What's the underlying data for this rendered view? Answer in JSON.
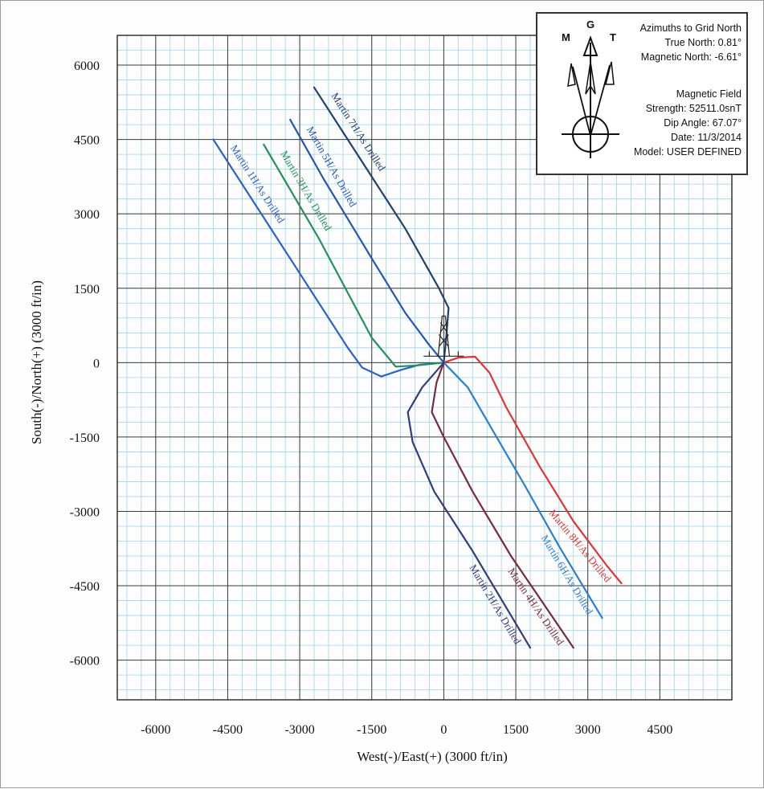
{
  "chart_data": {
    "type": "line",
    "xlabel": "West(-)/East(+) (3000 ft/in)",
    "ylabel": "South(-)/North(+) (3000 ft/in)",
    "xlim": [
      -6800,
      6000
    ],
    "ylim": [
      -6800,
      6600
    ],
    "x_ticks": [
      -6000,
      -4500,
      -3000,
      -1500,
      0,
      1500,
      3000,
      4500
    ],
    "y_ticks": [
      6000,
      4500,
      3000,
      1500,
      0,
      -1500,
      -3000,
      -4500,
      -6000
    ],
    "grid": true,
    "series": [
      {
        "name": "Martin 1H/As Drilled",
        "color": "#2a62c9",
        "points": [
          [
            -4800,
            4500
          ],
          [
            -3000,
            1800
          ],
          [
            -2000,
            300
          ],
          [
            -1700,
            -100
          ],
          [
            -1300,
            -280
          ],
          [
            -900,
            -150
          ],
          [
            -500,
            -40
          ],
          [
            0,
            0
          ]
        ]
      },
      {
        "name": "Martin 3H/As Drilled",
        "color": "#22915a",
        "points": [
          [
            -3750,
            4400
          ],
          [
            -2600,
            2500
          ],
          [
            -1500,
            500
          ],
          [
            -1000,
            -80
          ],
          [
            -600,
            -60
          ],
          [
            0,
            0
          ]
        ]
      },
      {
        "name": "Martin 5H/As Drilled",
        "color": "#2457b3",
        "points": [
          [
            -3200,
            4900
          ],
          [
            -2500,
            3700
          ],
          [
            -1500,
            2100
          ],
          [
            -800,
            1000
          ],
          [
            -300,
            350
          ],
          [
            0,
            0
          ]
        ]
      },
      {
        "name": "Martin 7H/As Drilled",
        "color": "#22426e",
        "points": [
          [
            -2700,
            5550
          ],
          [
            -1800,
            4200
          ],
          [
            -800,
            2700
          ],
          [
            -100,
            1500
          ],
          [
            100,
            1100
          ],
          [
            50,
            500
          ],
          [
            0,
            0
          ]
        ]
      },
      {
        "name": "Martin 8H/As Drilled",
        "color": "#e03434",
        "points": [
          [
            0,
            0
          ],
          [
            300,
            100
          ],
          [
            650,
            120
          ],
          [
            950,
            -200
          ],
          [
            1300,
            -900
          ],
          [
            2000,
            -2100
          ],
          [
            2700,
            -3200
          ],
          [
            3400,
            -4100
          ],
          [
            3700,
            -4450
          ]
        ]
      },
      {
        "name": "Martin 6H/As Drilled",
        "color": "#2b7fd0",
        "points": [
          [
            0,
            0
          ],
          [
            500,
            -500
          ],
          [
            1100,
            -1500
          ],
          [
            1700,
            -2500
          ],
          [
            2400,
            -3700
          ],
          [
            3300,
            -5150
          ]
        ]
      },
      {
        "name": "Martin 4H/As Drilled",
        "color": "#7a2a3c",
        "points": [
          [
            0,
            0
          ],
          [
            -150,
            -400
          ],
          [
            -250,
            -1000
          ],
          [
            0,
            -1500
          ],
          [
            600,
            -2600
          ],
          [
            1400,
            -3900
          ],
          [
            2700,
            -5750
          ]
        ]
      },
      {
        "name": "Martin 2H/As Drilled",
        "color": "#353a7c",
        "points": [
          [
            0,
            0
          ],
          [
            -450,
            -500
          ],
          [
            -750,
            -1000
          ],
          [
            -650,
            -1600
          ],
          [
            -200,
            -2600
          ],
          [
            600,
            -3800
          ],
          [
            1800,
            -5750
          ]
        ]
      }
    ],
    "legend_placement": "top-right"
  },
  "north_panel": {
    "symbol_labels": {
      "magnetic": "M",
      "grid": "G",
      "true": "T"
    },
    "lines": [
      "Azimuths to Grid North",
      "True North: 0.81°",
      "Magnetic North: -6.61°",
      "Magnetic Field",
      "Strength: 52511.0snT",
      "Dip Angle: 67.07°",
      "Date: 11/3/2014",
      "Model: USER DEFINED"
    ]
  },
  "icons": {
    "rig": "drilling-rig-icon",
    "north_arrow": "north-arrow-icon"
  }
}
